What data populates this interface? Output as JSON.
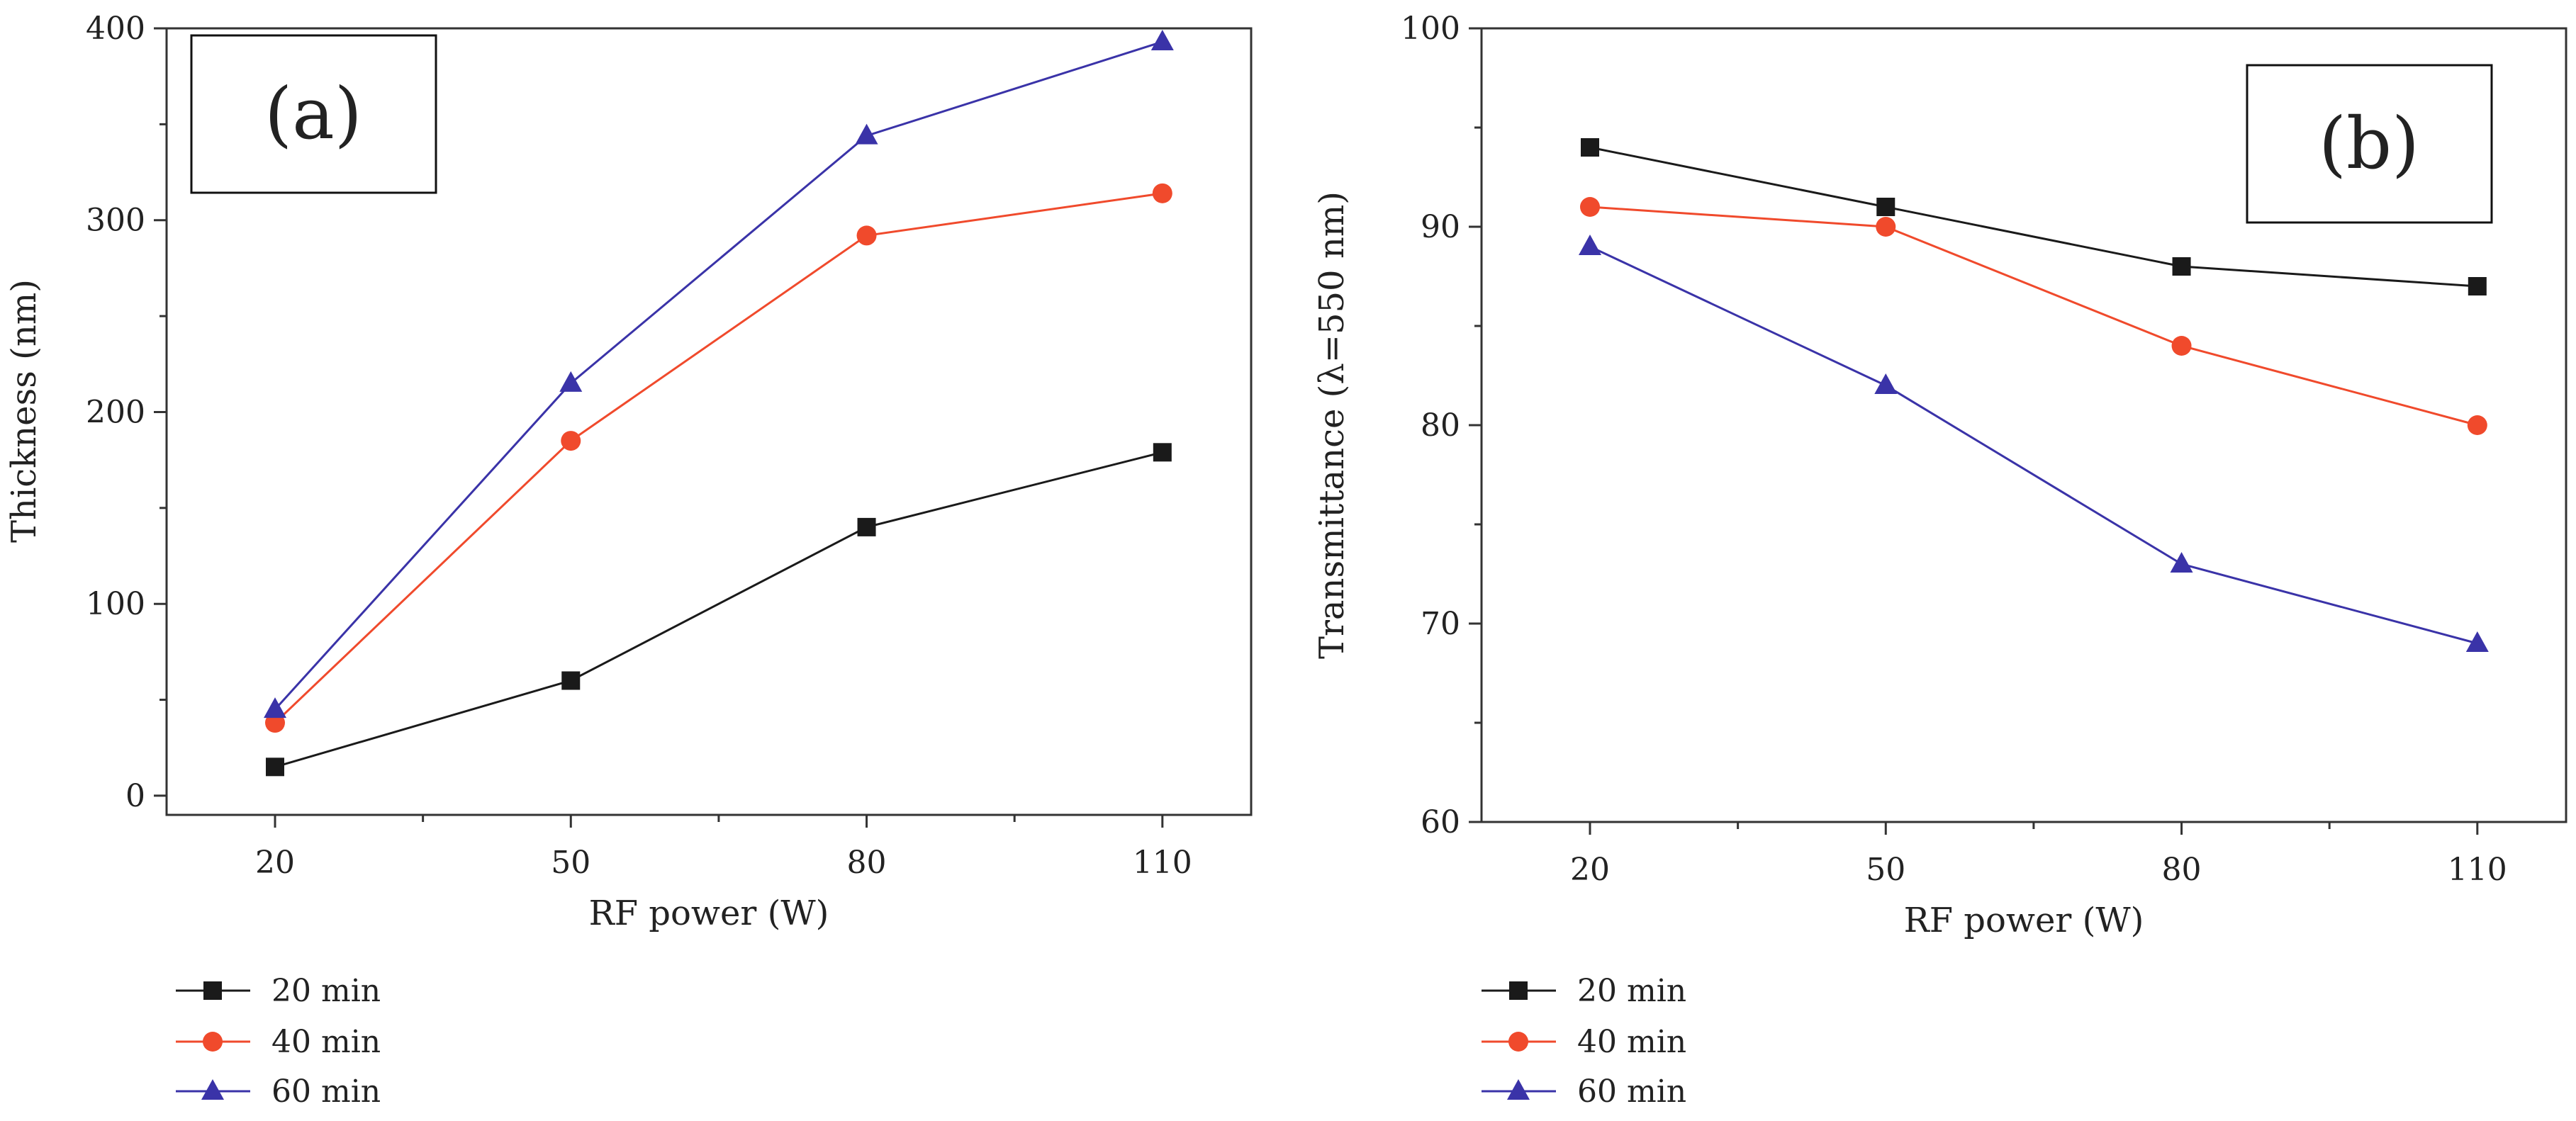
{
  "colors": {
    "series_20": "#1a1a1a",
    "series_40": "#f04a2c",
    "series_60": "#3a33a8",
    "axis": "#333333"
  },
  "chart_data": [
    {
      "id": "a",
      "type": "line",
      "panel_label": "(a)",
      "xlabel": "RF power (W)",
      "ylabel": "Thickness (nm)",
      "categories": [
        "20",
        "50",
        "80",
        "110"
      ],
      "x": [
        20,
        50,
        80,
        110
      ],
      "xlim": [
        9,
        119
      ],
      "ylim": [
        -10,
        400
      ],
      "yticks": [
        0,
        100,
        200,
        300,
        400
      ],
      "ytick_labels": [
        "0",
        "100",
        "200",
        "300",
        "400"
      ],
      "grid": false,
      "legend_position": "below-left",
      "series": [
        {
          "name": "20 min",
          "marker": "square",
          "color_key": "series_20",
          "values": [
            15,
            60,
            140,
            179
          ]
        },
        {
          "name": "40 min",
          "marker": "circle",
          "color_key": "series_40",
          "values": [
            38,
            185,
            292,
            314
          ]
        },
        {
          "name": "60 min",
          "marker": "triangle",
          "color_key": "series_60",
          "values": [
            45,
            215,
            344,
            393
          ]
        }
      ]
    },
    {
      "id": "b",
      "type": "line",
      "panel_label": "(b)",
      "xlabel": "RF power (W)",
      "ylabel": "Transmittance (λ=550 nm)",
      "categories": [
        "20",
        "50",
        "80",
        "110"
      ],
      "x": [
        20,
        50,
        80,
        110
      ],
      "xlim": [
        9,
        119
      ],
      "ylim": [
        60,
        100
      ],
      "yticks": [
        60,
        70,
        80,
        90,
        100
      ],
      "ytick_labels": [
        "60",
        "70",
        "80",
        "90",
        "100"
      ],
      "grid": false,
      "legend_position": "below-left",
      "series": [
        {
          "name": "20 min",
          "marker": "square",
          "color_key": "series_20",
          "values": [
            94,
            91,
            88,
            87
          ]
        },
        {
          "name": "40 min",
          "marker": "circle",
          "color_key": "series_40",
          "values": [
            91,
            90,
            84,
            80
          ]
        },
        {
          "name": "60 min",
          "marker": "triangle",
          "color_key": "series_60",
          "values": [
            89,
            82,
            73,
            69
          ]
        }
      ]
    }
  ]
}
